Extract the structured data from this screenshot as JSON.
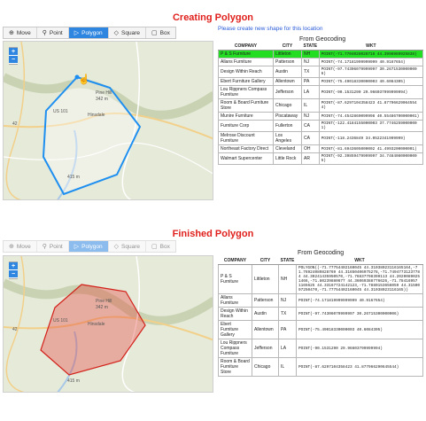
{
  "top": {
    "title": "Creating Polygon",
    "hint": "Please create new shape for this location",
    "toolbar": [
      {
        "label": "Move",
        "icon": "⊕",
        "active": false
      },
      {
        "label": "Point",
        "icon": "📍",
        "active": false
      },
      {
        "label": "Polygon",
        "icon": "▷",
        "active": true
      },
      {
        "label": "Square",
        "icon": "◇",
        "active": false
      },
      {
        "label": "Box",
        "icon": "▢",
        "active": false
      }
    ],
    "map_labels": {
      "pine_hill": "Pine Hill",
      "pine_hill_elev": "342 m",
      "route_101": "US 101",
      "hinsdale": "Hinsdale",
      "elev_415": "415 m",
      "route_42": "42"
    },
    "geo_caption": "From Geocoding",
    "columns": [
      "COMPANY",
      "CITY",
      "STATE",
      "WKT"
    ],
    "rows": [
      {
        "company": "P & S Furniture",
        "city": "Littleton",
        "state": "NH",
        "wkt": "POINT(-71.7704028028716 44.3998989925838)"
      },
      {
        "company": "Allans Furniture",
        "city": "Patterson",
        "state": "NJ",
        "wkt": "POINT(-74.17181999999999 40.9167654)"
      },
      {
        "company": "Design Within Reach",
        "city": "Austin",
        "state": "TX",
        "wkt": "POINT(-97.74306079999997 30.26715300000006)"
      },
      {
        "company": "Ebert Furniture Gallery",
        "city": "Allentown",
        "state": "PA",
        "wkt": "POINT(-75.49018330000003 40.6084305)"
      },
      {
        "company": "Lou Rippners Compass Furniture",
        "city": "Jefferson",
        "state": "LA",
        "wkt": "POINT(-90.1531290 29.966037999999994)"
      },
      {
        "company": "Room & Board Furniture Store",
        "city": "Chicago",
        "state": "IL",
        "wkt": "POINT(-87.6297104358423 41.877966290645544)"
      },
      {
        "company": "Munire Furniture",
        "city": "Piscataway",
        "state": "NJ",
        "wkt": "POINT(-74.4542860099998 40.55486700000001)"
      },
      {
        "company": "Furniture Corp",
        "city": "Fullerton",
        "state": "CA",
        "wkt": "POINT(-122.4184155000003 37.77462590000001)"
      },
      {
        "company": "Melrose Discount Furniture",
        "city": "Los Angeles",
        "state": "CA",
        "wkt": "POINT(-118.2436849 34.0522341999999)"
      },
      {
        "company": "Northeast Factory Direct",
        "city": "Cleveland",
        "state": "OH",
        "wkt": "POINT(-81.6943605000002 41.4993200000001)"
      },
      {
        "company": "Walmart Supercenter",
        "city": "Little Rock",
        "state": "AR",
        "wkt": "POINT(-92.39859479999997 34.74840800000005)"
      }
    ]
  },
  "bottom": {
    "title": "Finished Polygon",
    "toolbar": [
      {
        "label": "Move",
        "icon": "⊕",
        "active": false
      },
      {
        "label": "Point",
        "icon": "📍",
        "active": false
      },
      {
        "label": "Polygon",
        "icon": "▷",
        "active": true
      },
      {
        "label": "Square",
        "icon": "◇",
        "active": false
      },
      {
        "label": "Box",
        "icon": "▢",
        "active": false
      }
    ],
    "map_labels": {
      "pine_hill": "Pine Hill",
      "pine_hill_elev": "342 m",
      "route_101": "US 101",
      "hinsdale": "Hinsdale",
      "elev_415": "415 m",
      "route_42": "42"
    },
    "geo_caption": "From Geocoding",
    "columns": [
      "COMPANY",
      "CITY",
      "STATE",
      "WKT"
    ],
    "rows": [
      {
        "company": "P & S Furniture",
        "city": "Littleton",
        "state": "NH",
        "wkt": "POLYGON((-71.77754402160045 44.31038023116165164,-71.76924089828769 44.31650406975278,-71.74947731237784 44.30241435950570,-71.76837798399113 44.2020089025 1466,-71.80239880677 44.36069388776626,-71.78416957 1165625 44.33167724142123,-71.7880153656059 44.3150097250470,-71.77754402160045 44.31038023116165))"
      },
      {
        "company": "Allans Furniture",
        "city": "Patterson",
        "state": "NJ",
        "wkt": "POINT(-74.171819999999999 40.9167654)"
      },
      {
        "company": "Design Within Reach",
        "city": "Austin",
        "state": "TX",
        "wkt": "POINT(-97.74306079999997 30.26715300000006)"
      },
      {
        "company": "Ebert Furniture Gallery",
        "city": "Allentown",
        "state": "PA",
        "wkt": "POINT(-75.49018330000003 40.6084305)"
      },
      {
        "company": "Lou Rippners Compass Furniture",
        "city": "Jefferson",
        "state": "LA",
        "wkt": "POINT(-90.1531290 29.96603799999994)"
      },
      {
        "company": "Room & Board Furniture Store",
        "city": "Chicago",
        "state": "IL",
        "wkt": "POINT(-87.6297104358423 41.877966290645544)"
      }
    ]
  }
}
